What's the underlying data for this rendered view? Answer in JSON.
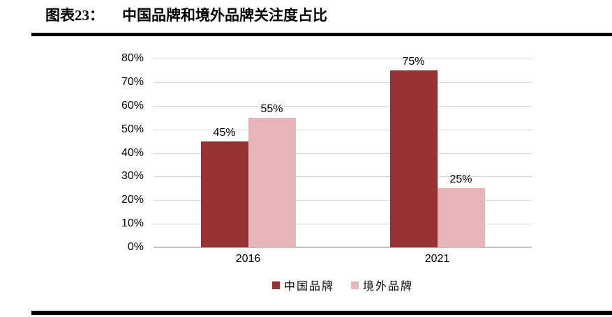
{
  "header": {
    "figure_label": "图表23：",
    "title": "中国品牌和境外品牌关注度占比"
  },
  "chart_data": {
    "type": "bar",
    "title": "中国品牌和境外品牌关注度占比",
    "categories": [
      "2016",
      "2021"
    ],
    "series": [
      {
        "name": "中国品牌",
        "values": [
          45,
          75
        ],
        "labels": [
          "45%",
          "75%"
        ],
        "color": "#993333"
      },
      {
        "name": "境外品牌",
        "values": [
          55,
          25
        ],
        "labels": [
          "55%",
          "25%"
        ],
        "color": "#e6b5b7"
      }
    ],
    "ylim": [
      0,
      80
    ],
    "ytick_step": 10,
    "ytick_labels": [
      "0%",
      "10%",
      "20%",
      "30%",
      "40%",
      "50%",
      "60%",
      "70%",
      "80%"
    ],
    "grid": true,
    "legend_position": "bottom",
    "gridline_color": "#d9d9d9",
    "axis_line_color": "#bfbfbf"
  }
}
